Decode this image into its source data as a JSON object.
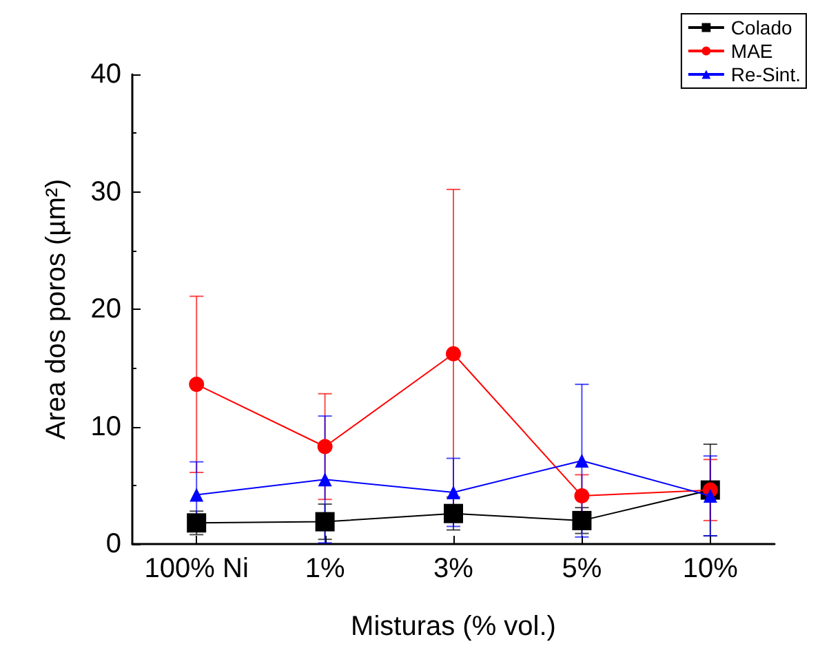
{
  "chart_data": {
    "type": "line",
    "xlabel": "Misturas (% vol.)",
    "ylabel": "Area dos poros (µm²)",
    "categories": [
      "100% Ni",
      "1%",
      "3%",
      "5%",
      "10%"
    ],
    "series": [
      {
        "name": "Colado",
        "color": "#000000",
        "marker": "square",
        "values": [
          1.8,
          1.9,
          2.6,
          2.0,
          4.6
        ],
        "errors": [
          1.0,
          1.5,
          1.4,
          1.1,
          3.9
        ]
      },
      {
        "name": "MAE",
        "color": "#ff0000",
        "marker": "circle",
        "values": [
          13.6,
          8.3,
          16.2,
          4.1,
          4.6
        ],
        "errors": [
          7.5,
          4.5,
          14.0,
          1.8,
          2.6
        ]
      },
      {
        "name": "Re-Sint.",
        "color": "#0000ff",
        "marker": "triangle",
        "values": [
          4.2,
          5.5,
          4.4,
          7.1,
          4.1
        ],
        "errors": [
          2.8,
          5.4,
          2.9,
          6.5,
          3.4
        ]
      }
    ],
    "ylim": [
      0,
      40
    ],
    "yticks": [
      0,
      10,
      20,
      30,
      40
    ],
    "grid": false,
    "legend": "top right",
    "line_style": "solid"
  }
}
